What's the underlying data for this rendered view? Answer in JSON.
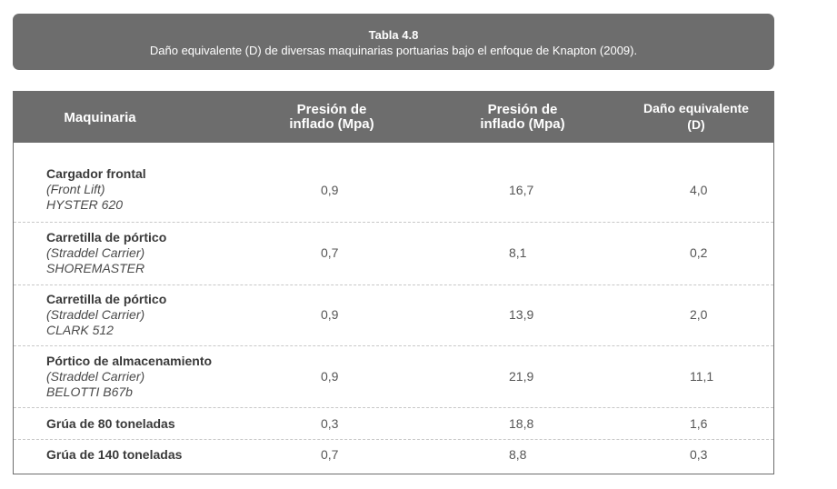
{
  "caption": {
    "title": "Tabla 4.8",
    "subtitle": "Daño equivalente (D) de diversas maquinarias portuarias bajo el enfoque de Knapton (2009)."
  },
  "table": {
    "headers": {
      "maquinaria": "Maquinaria",
      "presion1_line1": "Presión de",
      "presion1_line2": "inflado (Mpa)",
      "presion2_line1": "Presión de",
      "presion2_line2": "inflado (Mpa)",
      "dano_line1": "Daño equivalente",
      "dano_line2": "(D)"
    },
    "rows": [
      {
        "name": "Cargador  frontal",
        "sub1": "(Front Lift)",
        "sub2": "HYSTER 620",
        "p1": "0,9",
        "p2": "16,7",
        "d": "4,0"
      },
      {
        "name": "Carretilla de pórtico",
        "sub1": "(Straddel Carrier)",
        "sub2": "SHOREMASTER",
        "p1": "0,7",
        "p2": "8,1",
        "d": "0,2"
      },
      {
        "name": "Carretilla de pórtico",
        "sub1": "(Straddel Carrier)",
        "sub2": "CLARK 512",
        "p1": "0,9",
        "p2": "13,9",
        "d": "2,0"
      },
      {
        "name": "Pórtico de almacenamiento",
        "sub1": "(Straddel Carrier)",
        "sub2": "BELOTTI B67b",
        "p1": "0,9",
        "p2": "21,9",
        "d": "11,1"
      },
      {
        "name": "Grúa de 80 toneladas",
        "p1": "0,3",
        "p2": "18,8",
        "d": "1,6"
      },
      {
        "name": "Grúa de 140 toneladas",
        "p1": "0,7",
        "p2": "8,8",
        "d": "0,3"
      }
    ]
  }
}
